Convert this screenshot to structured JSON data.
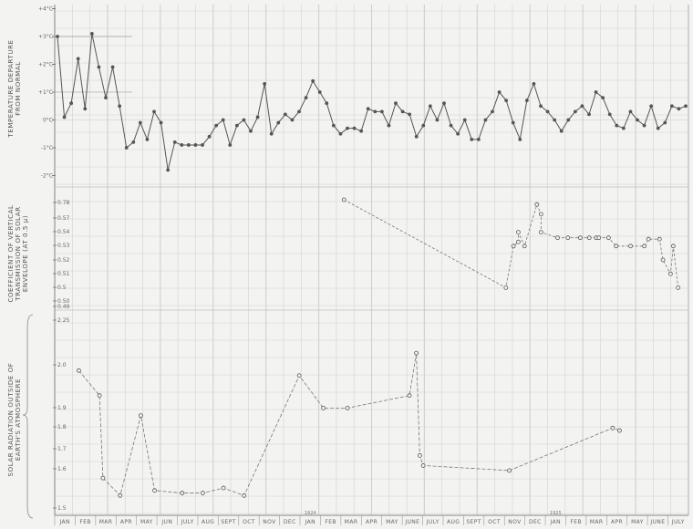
{
  "colors": {
    "background": "#f3f3f1",
    "grid": "#d2d2d0",
    "ink": "#555555",
    "dashed": "#777777"
  },
  "chart_data": [
    {
      "type": "line",
      "ylabel": [
        "TEMPERATURE DEPARTURE",
        "FROM NORMAL"
      ],
      "yticks": [
        "+4°C",
        "+3°C",
        "+2°C",
        "+1°C",
        "0°C",
        "-1°C",
        "-2°C"
      ],
      "ylim": [
        -2,
        4
      ],
      "series": [
        {
          "values": [
            3.0,
            0.1,
            0.6,
            2.2,
            0.4,
            3.1,
            1.9,
            0.8,
            1.9,
            0.5,
            -1.0,
            -0.8,
            -0.1,
            -0.7,
            0.3,
            -0.1,
            -1.8,
            -0.8,
            -0.9,
            -0.9,
            -0.9,
            -0.9,
            -0.6,
            -0.2,
            0.0,
            -0.9,
            -0.2,
            0.0,
            -0.4,
            0.1,
            1.3,
            -0.5,
            -0.1,
            0.2,
            0.0,
            0.3,
            0.8,
            1.4,
            1.0,
            0.6,
            -0.2,
            -0.5,
            -0.3,
            -0.3,
            -0.4,
            0.4,
            0.3,
            0.3,
            -0.2,
            0.6,
            0.3,
            0.2,
            -0.6,
            -0.2,
            0.5,
            0.0,
            0.6,
            -0.2,
            -0.5,
            0.0,
            -0.7,
            -0.7,
            0.0,
            0.3,
            1.0,
            0.7,
            -0.1,
            -0.7,
            0.7,
            1.3,
            0.5,
            0.3,
            0.0,
            -0.4,
            0.0,
            0.3,
            0.5,
            0.2,
            1.0,
            0.8,
            0.2,
            -0.2,
            -0.3,
            0.3,
            0.0,
            -0.2,
            0.5,
            -0.3,
            -0.1,
            0.5,
            0.4,
            0.5
          ]
        }
      ]
    },
    {
      "type": "line",
      "ylabel": [
        "COEFFICIENT OF VERTICAL",
        "TRANSMISSION OF SOLAR",
        "ENVELOPE (AT 0.5 μ)"
      ],
      "yticks": [
        "0.78",
        "0.57",
        "0.54",
        "0.53",
        "0.52",
        "0.51",
        "0.5",
        "0.50",
        "0.49"
      ],
      "series": [
        {
          "x": [
            42.0,
            65.5,
            66.6,
            67.3,
            67.3,
            68.2,
            70.0,
            70.6,
            70.6,
            73.0,
            74.5,
            76.3,
            77.6,
            78.6,
            79.0,
            80.4,
            81.5,
            83.6,
            85.6,
            86.2,
            87.8,
            88.3,
            89.4,
            89.8,
            90.5
          ],
          "y": [
            0.57,
            0.5,
            0.53,
            0.533,
            0.54,
            0.53,
            0.56,
            0.553,
            0.54,
            0.536,
            0.536,
            0.536,
            0.536,
            0.536,
            0.536,
            0.536,
            0.53,
            0.53,
            0.53,
            0.535,
            0.535,
            0.52,
            0.51,
            0.53,
            0.5
          ]
        }
      ]
    },
    {
      "type": "line",
      "ylabel": [
        "SOLAR RADIATION OUTSIDE OF",
        "EARTH'S ATMOSPHERE"
      ],
      "yticks": [
        "2.25",
        "2.0",
        "1.9",
        "1.8",
        "1.7",
        "1.6",
        "1.5"
      ],
      "series": [
        {
          "x": [
            3.5,
            6.5,
            7.0,
            9.5,
            12.5,
            14.5,
            18.5,
            21.5,
            24.5,
            27.5,
            35.5,
            39.0,
            42.5,
            51.5,
            52.5,
            53.0,
            53.5,
            66.0,
            81.0,
            82.0
          ],
          "y": [
            2.05,
            1.95,
            1.62,
            1.55,
            1.87,
            1.57,
            1.56,
            1.56,
            1.58,
            1.55,
            2.03,
            1.9,
            1.9,
            1.95,
            2.12,
            1.71,
            1.67,
            1.65,
            1.82,
            1.81
          ]
        }
      ]
    }
  ],
  "x_axis": {
    "month_labels": [
      "JAN",
      "FEB",
      "MAR",
      "APR",
      "MAY",
      "JUN",
      "JULY",
      "AUG",
      "SEPT",
      "OCT",
      "NOV",
      "DEC",
      "JAN",
      "FEB",
      "MAR",
      "APR",
      "MAY",
      "JUNE",
      "JULY",
      "AUG",
      "SEPT",
      "OCT",
      "NOV",
      "DEC",
      "JAN",
      "FEB",
      "MAR",
      "APR",
      "MAY",
      "JUNE",
      "JULY"
    ],
    "year_labels": [
      "1924",
      "1925"
    ]
  }
}
